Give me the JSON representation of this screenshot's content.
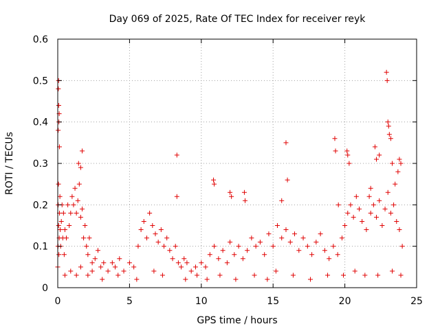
{
  "chart_data": {
    "type": "scatter",
    "title": "Day 069 of 2025, Rate Of TEC Index for receiver reyk",
    "xlabel": "GPS time / hours",
    "ylabel": "ROTI / TECUs",
    "xlim": [
      0,
      25
    ],
    "ylim": [
      0,
      0.6
    ],
    "x_ticks": [
      0,
      5,
      10,
      15,
      20,
      25
    ],
    "x_tick_labels": [
      "0",
      "5",
      "10",
      "15",
      "20",
      "25"
    ],
    "y_ticks": [
      0,
      0.1,
      0.2,
      0.3,
      0.4,
      0.5,
      0.6
    ],
    "y_tick_labels": [
      "0",
      "0.1",
      "0.2",
      "0.3",
      "0.4",
      "0.5",
      "0.6"
    ],
    "grid": true,
    "marker": "plus",
    "color": "#e00000",
    "series": [
      {
        "x": [
          0.0,
          0.02,
          0.03,
          0.05,
          0.06,
          0.08,
          0.1,
          0.12,
          0.15,
          0.17,
          0.2,
          0.25,
          0.3,
          0.35,
          0.4,
          0.45,
          0.5,
          0.6,
          0.7,
          0.8,
          0.9,
          1.0,
          1.1,
          1.2,
          1.3,
          1.4,
          1.5,
          1.6,
          1.7,
          1.8,
          1.9,
          2.0,
          2.1,
          2.2,
          2.4,
          2.6,
          2.8,
          3.0,
          3.2,
          3.5,
          3.8,
          4.0,
          4.3,
          4.6,
          5.0,
          5.3,
          5.6,
          5.8,
          6.0,
          6.2,
          6.4,
          6.6,
          6.8,
          7.0,
          7.2,
          7.4,
          7.6,
          7.8,
          8.0,
          8.2,
          8.4,
          8.6,
          8.8,
          9.0,
          9.3,
          9.6,
          10.0,
          10.3,
          10.6,
          10.9,
          11.2,
          11.5,
          11.8,
          12.0,
          12.3,
          12.6,
          12.9,
          13.2,
          13.5,
          13.8,
          14.1,
          14.4,
          14.7,
          15.0,
          15.3,
          15.6,
          15.9,
          16.2,
          16.5,
          16.8,
          17.1,
          17.4,
          17.7,
          18.0,
          18.3,
          18.6,
          18.9,
          19.2,
          19.5,
          19.8,
          20.0,
          20.2,
          20.4,
          20.6,
          20.8,
          21.0,
          21.2,
          21.5,
          21.8,
          22.0,
          22.2,
          22.4,
          22.6,
          22.8,
          23.0,
          23.2,
          23.4,
          23.6,
          23.8,
          24.0,
          0.04,
          0.06,
          0.07,
          0.1,
          0.03,
          0.08,
          0.12,
          1.45,
          1.6,
          1.7,
          8.3,
          8.3,
          10.85,
          10.9,
          12.0,
          12.1,
          13.0,
          13.05,
          15.9,
          15.6,
          16.0,
          19.3,
          19.35,
          19.55,
          20.15,
          20.2,
          20.3,
          21.7,
          21.8,
          22.1,
          22.2,
          22.4,
          22.9,
          22.95,
          23.0,
          23.05,
          23.1,
          23.2,
          23.3,
          23.5,
          23.7,
          23.8,
          23.9,
          0.5,
          0.9,
          1.3,
          1.6,
          2.1,
          2.4,
          3.1,
          4.2,
          5.5,
          6.7,
          7.3,
          8.9,
          9.7,
          10.4,
          11.3,
          12.4,
          13.7,
          14.6,
          15.2,
          16.4,
          17.6,
          18.8,
          19.9,
          20.7,
          21.4,
          22.3,
          23.3,
          23.9
        ],
        "y": [
          0.05,
          0.1,
          0.2,
          0.25,
          0.15,
          0.08,
          0.12,
          0.18,
          0.22,
          0.14,
          0.1,
          0.16,
          0.2,
          0.12,
          0.18,
          0.08,
          0.14,
          0.12,
          0.2,
          0.15,
          0.18,
          0.22,
          0.2,
          0.24,
          0.18,
          0.21,
          0.25,
          0.17,
          0.19,
          0.12,
          0.15,
          0.1,
          0.08,
          0.12,
          0.06,
          0.07,
          0.09,
          0.05,
          0.06,
          0.04,
          0.06,
          0.05,
          0.07,
          0.04,
          0.06,
          0.05,
          0.1,
          0.14,
          0.16,
          0.12,
          0.18,
          0.15,
          0.13,
          0.11,
          0.14,
          0.1,
          0.12,
          0.09,
          0.07,
          0.1,
          0.06,
          0.05,
          0.07,
          0.06,
          0.04,
          0.05,
          0.06,
          0.05,
          0.08,
          0.1,
          0.07,
          0.09,
          0.06,
          0.11,
          0.08,
          0.1,
          0.07,
          0.09,
          0.12,
          0.1,
          0.11,
          0.08,
          0.13,
          0.1,
          0.15,
          0.12,
          0.14,
          0.11,
          0.13,
          0.09,
          0.12,
          0.1,
          0.08,
          0.11,
          0.13,
          0.09,
          0.07,
          0.1,
          0.08,
          0.12,
          0.15,
          0.18,
          0.2,
          0.17,
          0.22,
          0.19,
          0.16,
          0.14,
          0.18,
          0.2,
          0.17,
          0.21,
          0.15,
          0.19,
          0.23,
          0.18,
          0.2,
          0.16,
          0.14,
          0.1,
          0.48,
          0.5,
          0.44,
          0.42,
          0.38,
          0.4,
          0.34,
          0.3,
          0.29,
          0.33,
          0.32,
          0.22,
          0.26,
          0.25,
          0.23,
          0.22,
          0.23,
          0.21,
          0.35,
          0.21,
          0.26,
          0.36,
          0.33,
          0.2,
          0.33,
          0.32,
          0.3,
          0.22,
          0.24,
          0.34,
          0.31,
          0.32,
          0.52,
          0.5,
          0.4,
          0.39,
          0.37,
          0.36,
          0.3,
          0.25,
          0.28,
          0.31,
          0.3,
          0.03,
          0.04,
          0.03,
          0.05,
          0.03,
          0.04,
          0.02,
          0.03,
          0.02,
          0.04,
          0.03,
          0.02,
          0.03,
          0.02,
          0.03,
          0.02,
          0.03,
          0.02,
          0.04,
          0.03,
          0.02,
          0.03,
          0.03,
          0.04,
          0.03,
          0.03,
          0.04,
          0.03
        ]
      }
    ]
  }
}
